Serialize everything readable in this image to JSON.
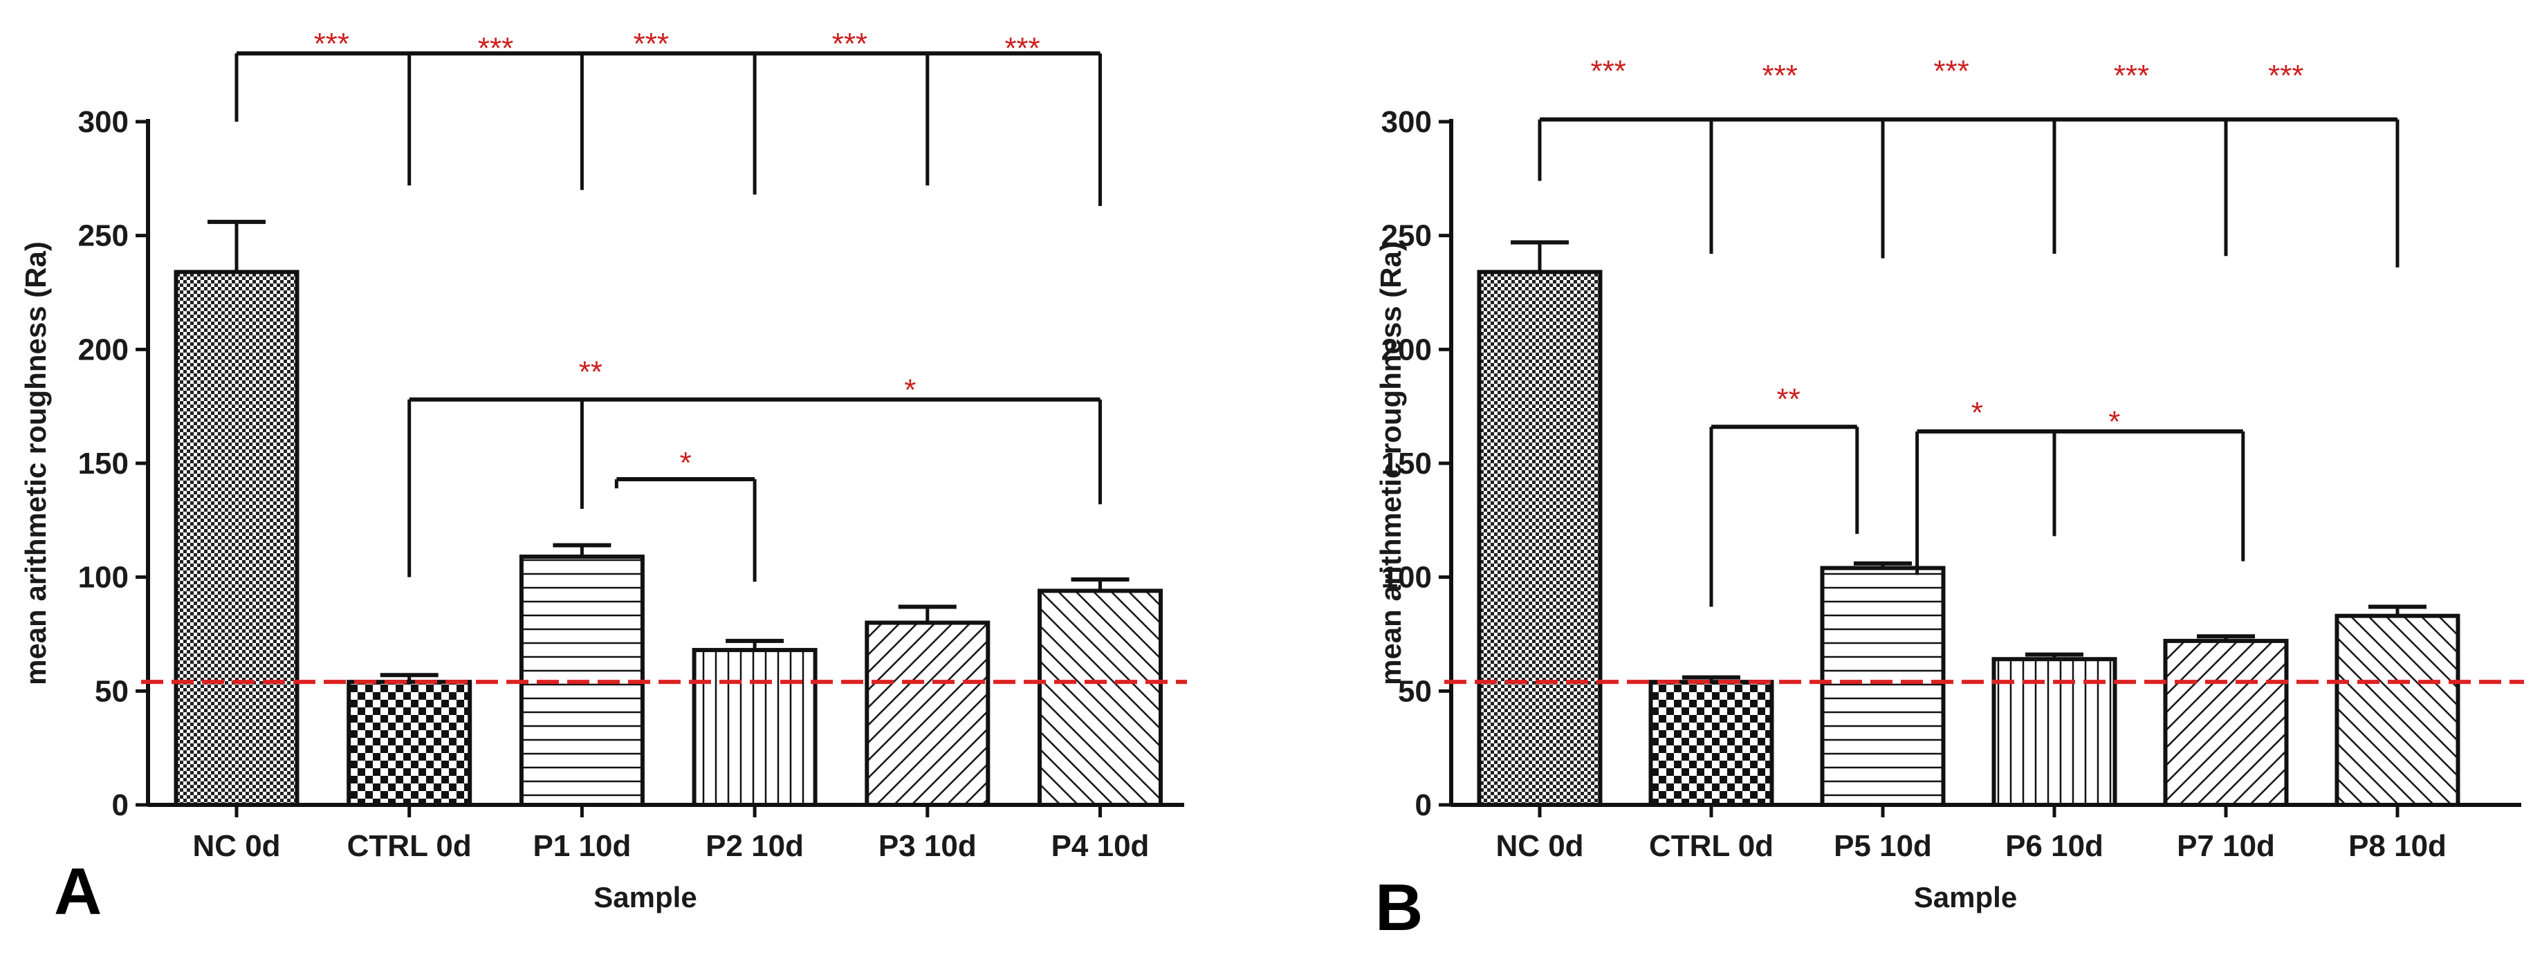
{
  "colors": {
    "axis": "#111111",
    "bar_fill": "#ffffff",
    "significance": "#cc1f1f",
    "reference_line": "#dd2222"
  },
  "chart_data": [
    {
      "panel_label": "A",
      "type": "bar",
      "xlabel": "Sample",
      "ylabel": "mean arithmetic roughness (Ra)",
      "ylim": [
        0,
        300
      ],
      "yticks": [
        0,
        50,
        100,
        150,
        200,
        250,
        300
      ],
      "reference_line_y": 54,
      "categories": [
        "NC 0d",
        "CTRL 0d",
        "P1 10d",
        "P2 10d",
        "P3 10d",
        "P4 10d"
      ],
      "values": [
        234,
        54,
        109,
        68,
        80,
        94
      ],
      "errors": [
        22,
        3,
        5,
        4,
        7,
        5
      ],
      "patterns": [
        "fine-check",
        "checker",
        "hlines",
        "vlines",
        "diag-up",
        "diag-down"
      ],
      "significance": [
        {
          "type": "bracket",
          "from": 0,
          "to": 5,
          "y": 330,
          "drops": [
            {
              "bar": 0,
              "to": 300
            },
            {
              "bar": 1,
              "to": 272
            },
            {
              "bar": 2,
              "to": 270
            },
            {
              "bar": 3,
              "to": 268
            },
            {
              "bar": 4,
              "to": 272
            },
            {
              "bar": 5,
              "to": 263
            }
          ]
        },
        {
          "type": "label",
          "text": "***",
          "x": 0.55,
          "y": 334
        },
        {
          "type": "label",
          "text": "***",
          "x": 1.5,
          "y": 332
        },
        {
          "type": "label",
          "text": "***",
          "x": 2.4,
          "y": 334
        },
        {
          "type": "label",
          "text": "***",
          "x": 3.55,
          "y": 334
        },
        {
          "type": "label",
          "text": "***",
          "x": 4.55,
          "y": 332
        },
        {
          "type": "bracket",
          "from": 1,
          "to": 5,
          "y": 178,
          "drops": [
            {
              "bar": 1,
              "to": 100
            },
            {
              "bar": 2,
              "to": 130
            },
            {
              "bar": 5,
              "to": 132
            }
          ]
        },
        {
          "type": "label",
          "text": "**",
          "x": 2.05,
          "y": 190
        },
        {
          "type": "label",
          "text": "*",
          "x": 3.9,
          "y": 182
        },
        {
          "type": "bracket",
          "from": 2.2,
          "to": 3,
          "y": 143,
          "drops": [
            {
              "bar": 2.2,
              "to": 139
            },
            {
              "bar": 3,
              "to": 98
            }
          ]
        },
        {
          "type": "label",
          "text": "*",
          "x": 2.6,
          "y": 150
        }
      ]
    },
    {
      "panel_label": "B",
      "type": "bar",
      "xlabel": "Sample",
      "ylabel": "mean arithmetic roughness (Ra)",
      "ylim": [
        0,
        300
      ],
      "yticks": [
        0,
        50,
        100,
        150,
        200,
        250,
        300
      ],
      "reference_line_y": 54,
      "categories": [
        "NC 0d",
        "CTRL 0d",
        "P5 10d",
        "P6 10d",
        "P7 10d",
        "P8 10d"
      ],
      "values": [
        234,
        54,
        104,
        64,
        72,
        83
      ],
      "errors": [
        13,
        2,
        2,
        2,
        2,
        4
      ],
      "patterns": [
        "fine-check",
        "checker",
        "hlines",
        "vlines",
        "diag-up",
        "diag-down"
      ],
      "significance": [
        {
          "type": "bracket",
          "from": 0,
          "to": 5,
          "y": 301,
          "drops": [
            {
              "bar": 0,
              "to": 274
            },
            {
              "bar": 1,
              "to": 242
            },
            {
              "bar": 2,
              "to": 240
            },
            {
              "bar": 3,
              "to": 242
            },
            {
              "bar": 4,
              "to": 241
            },
            {
              "bar": 5,
              "to": 236
            }
          ]
        },
        {
          "type": "label",
          "text": "***",
          "x": 0.4,
          "y": 322
        },
        {
          "type": "label",
          "text": "***",
          "x": 1.4,
          "y": 320
        },
        {
          "type": "label",
          "text": "***",
          "x": 2.4,
          "y": 322
        },
        {
          "type": "label",
          "text": "***",
          "x": 3.45,
          "y": 320
        },
        {
          "type": "label",
          "text": "***",
          "x": 4.35,
          "y": 320
        },
        {
          "type": "bracket",
          "from": 1,
          "to": 1.85,
          "y": 166,
          "drops": [
            {
              "bar": 1,
              "to": 87
            },
            {
              "bar": 1.85,
              "to": 119
            }
          ]
        },
        {
          "type": "label",
          "text": "**",
          "x": 1.45,
          "y": 178
        },
        {
          "type": "bracket",
          "from": 2.2,
          "to": 4.1,
          "y": 164,
          "drops": [
            {
              "bar": 2.2,
              "to": 101
            },
            {
              "bar": 3,
              "to": 118
            },
            {
              "bar": 4.1,
              "to": 107
            }
          ]
        },
        {
          "type": "label",
          "text": "*",
          "x": 2.55,
          "y": 172
        },
        {
          "type": "label",
          "text": "*",
          "x": 3.35,
          "y": 168
        }
      ]
    }
  ]
}
